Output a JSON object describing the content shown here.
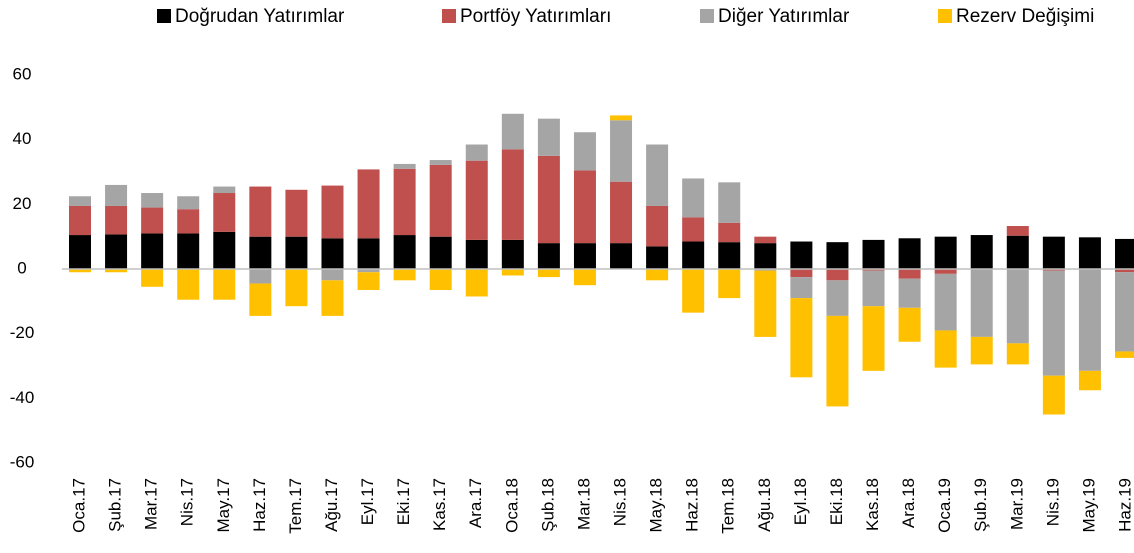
{
  "chart_data": {
    "type": "bar",
    "stacked": true,
    "categories": [
      "Oca.17",
      "Şub.17",
      "Mar.17",
      "Nis.17",
      "May.17",
      "Haz.17",
      "Tem.17",
      "Ağu.17",
      "Eyl.17",
      "Eki.17",
      "Kas.17",
      "Ara.17",
      "Oca.18",
      "Şub.18",
      "Mar.18",
      "Nis.18",
      "May.18",
      "Haz.18",
      "Tem.18",
      "Ağu.18",
      "Eyl.18",
      "Eki.18",
      "Kas.18",
      "Ara.18",
      "Oca.19",
      "Şub.19",
      "Mar.19",
      "Nis.19",
      "May.19",
      "Haz.19"
    ],
    "series": [
      {
        "name": "Doğrudan Yatırımlar",
        "color": "#000000",
        "values": [
          10.5,
          10.7,
          11,
          11,
          11.5,
          10,
          10,
          9.5,
          9.5,
          10.5,
          10,
          9,
          9,
          8,
          8,
          8,
          7,
          8.5,
          8.3,
          8,
          8.5,
          8.3,
          9,
          9.5,
          10,
          10.5,
          10.3,
          10,
          9.8,
          9.3
        ]
      },
      {
        "name": "Portföy Yatırımları",
        "color": "#c0504d",
        "values": [
          9,
          8.8,
          8,
          7.5,
          12,
          15.5,
          14.5,
          16.3,
          21.3,
          20.5,
          22.2,
          24.5,
          28,
          27,
          22.5,
          19,
          12.5,
          7.5,
          6,
          2,
          -2.5,
          -3.5,
          -0.5,
          -3,
          -1.5,
          0,
          3,
          -0.5,
          0,
          -1
        ]
      },
      {
        "name": "Diğer Yatırımlar",
        "color": "#a5a5a5",
        "values": [
          3,
          6.5,
          4.5,
          4,
          2,
          -4.5,
          0,
          -3.5,
          -1,
          1.5,
          1.5,
          5,
          11,
          11.5,
          11.8,
          19,
          19,
          12,
          12.5,
          -0.5,
          -6.5,
          -11,
          -11,
          -9,
          -17.5,
          -21,
          -23,
          -32.5,
          -31.5,
          -24.5
        ]
      },
      {
        "name": "Rezerv Değişimi",
        "color": "#ffc000",
        "values": [
          -1,
          -1,
          -5.5,
          -9.5,
          -9.5,
          -10,
          -11.5,
          -11,
          -5.5,
          -3.5,
          -6.5,
          -8.5,
          -2,
          -2.5,
          -5,
          1.5,
          -3.5,
          -13.5,
          -9,
          -20.5,
          -24.5,
          -28,
          -20,
          -10.5,
          -11.5,
          -8.5,
          -6.5,
          -12,
          -6,
          -2
        ]
      }
    ],
    "ylim": [
      -60,
      60
    ],
    "yticks": [
      -60,
      -40,
      -20,
      0,
      20,
      40,
      60
    ],
    "legend": "top"
  }
}
